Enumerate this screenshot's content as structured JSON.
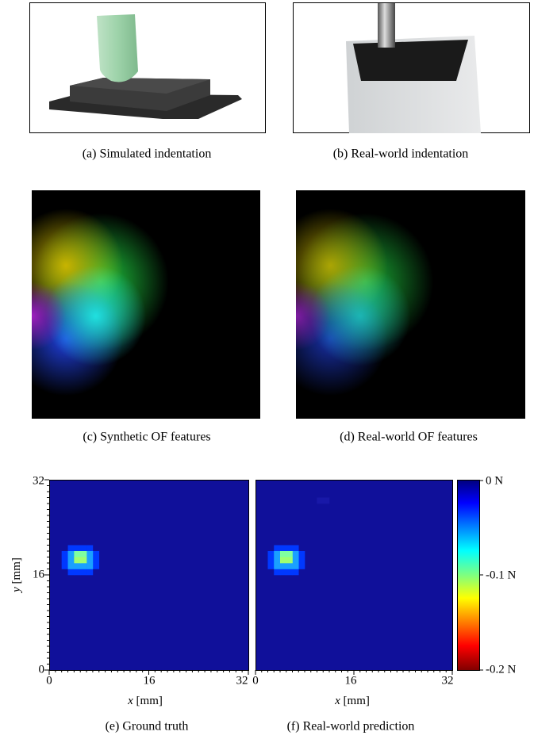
{
  "panels": [
    {
      "caption": "(a) Simulated indentation"
    },
    {
      "caption": "(b) Real-world indentation"
    },
    {
      "caption": "(c) Synthetic OF features"
    },
    {
      "caption": "(d) Real-world OF features"
    },
    {
      "caption": "(e) Ground truth",
      "yticks": [
        "32",
        "16",
        "0"
      ],
      "xticks": [
        "0",
        "16",
        "32"
      ],
      "ylabel_var": "y",
      "ylabel_unit": " [mm]",
      "xlabel_var": "x",
      "xlabel_unit": " [mm]"
    },
    {
      "caption": "(f) Real-world prediction",
      "xticks": [
        "0",
        "16",
        "32"
      ],
      "xlabel_var": "x",
      "xlabel_unit": " [mm]"
    }
  ],
  "colorbar": {
    "labels": [
      "0 N",
      "-0.1 N",
      "-0.2 N"
    ]
  }
}
